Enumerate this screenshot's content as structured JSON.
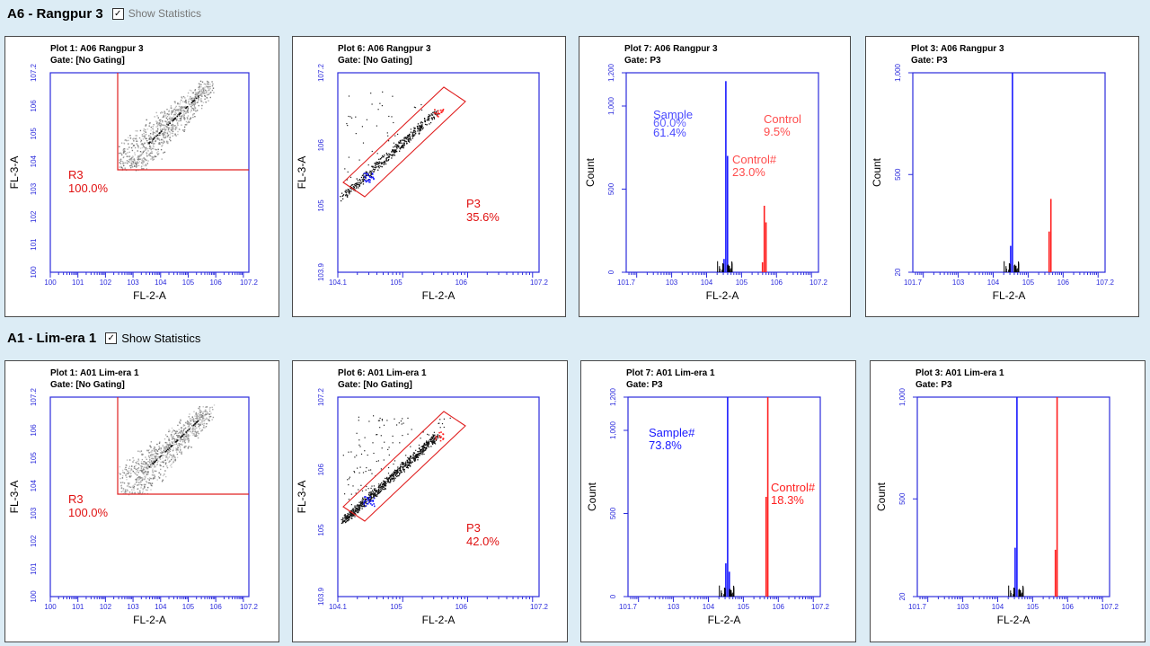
{
  "rows": [
    {
      "title": "A6 - Rangpur 3",
      "show_statistics_label": "Show Statistics",
      "show_statistics_checked": true,
      "panels": [
        {
          "plot_title": "Plot 1: A06 Rangpur 3",
          "gate": "Gate:  [No Gating]",
          "xlabel": "FL-2-A",
          "ylabel": "FL-3-A",
          "xticks": [
            "10^0",
            "10^1",
            "10^2",
            "10^3",
            "10^4",
            "10^5",
            "10^6",
            "10^7.2"
          ],
          "yticks": [
            "10^0",
            "10^1",
            "10^2",
            "10^3",
            "10^4",
            "10^5",
            "10^6",
            "10^7.2"
          ],
          "region_name": "R3",
          "region_pct": "100.0%"
        },
        {
          "plot_title": "Plot 6: A06 Rangpur 3",
          "gate": "Gate:  [No Gating]",
          "xlabel": "FL-2-A",
          "ylabel": "FL-3-A",
          "xticks": [
            "10^4.1",
            "10^5",
            "10^6",
            "10^7.2"
          ],
          "yticks": [
            "10^3.9",
            "10^5",
            "10^6",
            "10^7.2"
          ],
          "region_name": "P3",
          "region_pct": "35.6%"
        },
        {
          "plot_title": "Plot 7: A06 Rangpur 3",
          "gate": "Gate:  P3",
          "xlabel": "FL-2-A",
          "ylabel": "Count",
          "xticks": [
            "10^1.7",
            "10^3",
            "10^4",
            "10^5",
            "10^6",
            "10^7.2"
          ],
          "yticks": [
            "0",
            "500",
            "1,000",
            "1,200"
          ],
          "sample_label": "Sample",
          "sample_label2": "Sample#",
          "sample_pct": "60.0%",
          "sample_pct2": "61.4%",
          "control_label": "Control",
          "control_pct": "9.5%",
          "control_label2": "Control#",
          "control_pct2": "23.0%"
        },
        {
          "plot_title": "Plot 3: A06 Rangpur 3",
          "gate": "Gate:  P3",
          "xlabel": "FL-2-A",
          "ylabel": "Count",
          "xticks": [
            "10^1.7",
            "10^3",
            "10^4",
            "10^5",
            "10^6",
            "10^7.2"
          ],
          "yticks": [
            "20",
            "500",
            "1,000"
          ]
        }
      ]
    },
    {
      "title": "A1 - Lim-era 1",
      "show_statistics_label": "Show Statistics",
      "show_statistics_checked": true,
      "panels": [
        {
          "plot_title": "Plot 1: A01 Lim-era 1",
          "gate": "Gate:  [No Gating]",
          "xlabel": "FL-2-A",
          "ylabel": "FL-3-A",
          "xticks": [
            "10^0",
            "10^1",
            "10^2",
            "10^3",
            "10^4",
            "10^5",
            "10^6",
            "10^7.2"
          ],
          "yticks": [
            "10^0",
            "10^1",
            "10^2",
            "10^3",
            "10^4",
            "10^5",
            "10^6",
            "10^7.2"
          ],
          "region_name": "R3",
          "region_pct": "100.0%"
        },
        {
          "plot_title": "Plot 6: A01 Lim-era 1",
          "gate": "Gate:  [No Gating]",
          "xlabel": "FL-2-A",
          "ylabel": "FL-3-A",
          "xticks": [
            "10^4.1",
            "10^5",
            "10^6",
            "10^7.2"
          ],
          "yticks": [
            "10^3.9",
            "10^5",
            "10^6",
            "10^7.2"
          ],
          "region_name": "P3",
          "region_pct": "42.0%"
        },
        {
          "plot_title": "Plot 7: A01 Lim-era 1",
          "gate": "Gate:  P3",
          "xlabel": "FL-2-A",
          "ylabel": "Count",
          "xticks": [
            "10^1.7",
            "10^3",
            "10^4",
            "10^5",
            "10^6",
            "10^7.2"
          ],
          "yticks": [
            "0",
            "500",
            "1,000",
            "1,200"
          ],
          "sample_label": "Sample#",
          "sample_pct": "73.8%",
          "control_label": "Control#",
          "control_pct": "18.3%"
        },
        {
          "plot_title": "Plot 3: A01 Lim-era 1",
          "gate": "Gate:  P3",
          "xlabel": "FL-2-A",
          "ylabel": "Count",
          "xticks": [
            "10^1.7",
            "10^3",
            "10^4",
            "10^5",
            "10^6",
            "10^7.2"
          ],
          "yticks": [
            "20",
            "500",
            "1,000"
          ]
        }
      ]
    }
  ],
  "colors": {
    "axis": "#2b2bdc",
    "gate": "#e02020",
    "sample": "#1a1aff",
    "control": "#ff2020",
    "text_red": "#e01010",
    "scatter": "#000000",
    "density": "#8a8a8a"
  },
  "chart_data": [
    {
      "type": "scatter",
      "title": "Plot 1: A06 Rangpur 3",
      "xlabel": "FL-2-A",
      "ylabel": "FL-3-A",
      "xscale": "log",
      "yscale": "log",
      "xlim": [
        1,
        15848932
      ],
      "ylim": [
        1,
        15848932
      ],
      "annotations": [
        {
          "text": "R3",
          "value": "100.0%"
        }
      ]
    },
    {
      "type": "scatter",
      "title": "Plot 6: A06 Rangpur 3",
      "xlabel": "FL-2-A",
      "ylabel": "FL-3-A",
      "xscale": "log",
      "yscale": "log",
      "xlim": [
        12589,
        15848932
      ],
      "ylim": [
        7943,
        15848932
      ],
      "annotations": [
        {
          "text": "P3",
          "value": "35.6%"
        }
      ]
    },
    {
      "type": "bar",
      "title": "Plot 7: A06 Rangpur 3",
      "xlabel": "FL-2-A",
      "ylabel": "Count",
      "xscale": "log",
      "xlim": [
        50,
        15848932
      ],
      "ylim": [
        0,
        1200
      ],
      "series": [
        {
          "name": "Sample",
          "x": [
            31623,
            35481,
            39811
          ],
          "values": [
            80,
            1150,
            700
          ]
        },
        {
          "name": "Control",
          "x": [
            398107,
            446684,
            501187
          ],
          "values": [
            60,
            400,
            300
          ]
        }
      ]
    },
    {
      "type": "bar",
      "title": "Plot 3: A06 Rangpur 3",
      "xlabel": "FL-2-A",
      "ylabel": "Count",
      "xscale": "log",
      "xlim": [
        50,
        15848932
      ],
      "ylim": [
        20,
        1000
      ],
      "series": [
        {
          "name": "Sample",
          "x": [
            31623,
            35481
          ],
          "values": [
            150,
            1000
          ]
        },
        {
          "name": "Control",
          "x": [
            398107,
            446684
          ],
          "values": [
            220,
            380
          ]
        }
      ]
    },
    {
      "type": "scatter",
      "title": "Plot 1: A01 Lim-era 1",
      "xlabel": "FL-2-A",
      "ylabel": "FL-3-A",
      "xscale": "log",
      "yscale": "log",
      "xlim": [
        1,
        15848932
      ],
      "ylim": [
        1,
        15848932
      ],
      "annotations": [
        {
          "text": "R3",
          "value": "100.0%"
        }
      ]
    },
    {
      "type": "scatter",
      "title": "Plot 6: A01 Lim-era 1",
      "xlabel": "FL-2-A",
      "ylabel": "FL-3-A",
      "xscale": "log",
      "yscale": "log",
      "xlim": [
        12589,
        15848932
      ],
      "ylim": [
        7943,
        15848932
      ],
      "annotations": [
        {
          "text": "P3",
          "value": "42.0%"
        }
      ]
    },
    {
      "type": "bar",
      "title": "Plot 7: A01 Lim-era 1",
      "xlabel": "FL-2-A",
      "ylabel": "Count",
      "xscale": "log",
      "xlim": [
        50,
        15848932
      ],
      "ylim": [
        0,
        1200
      ],
      "series": [
        {
          "name": "Sample#",
          "x": [
            31623,
            35481,
            39811
          ],
          "values": [
            200,
            1200,
            150
          ]
        },
        {
          "name": "Control#",
          "x": [
            446684,
            501187
          ],
          "values": [
            600,
            1200
          ]
        }
      ]
    },
    {
      "type": "bar",
      "title": "Plot 3: A01 Lim-era 1",
      "xlabel": "FL-2-A",
      "ylabel": "Count",
      "xscale": "log",
      "xlim": [
        50,
        15848932
      ],
      "ylim": [
        20,
        1000
      ],
      "series": [
        {
          "name": "Sample#",
          "x": [
            31623,
            35481
          ],
          "values": [
            260,
            1000
          ]
        },
        {
          "name": "Control#",
          "x": [
            446684,
            501187
          ],
          "values": [
            250,
            1000
          ]
        }
      ]
    }
  ]
}
